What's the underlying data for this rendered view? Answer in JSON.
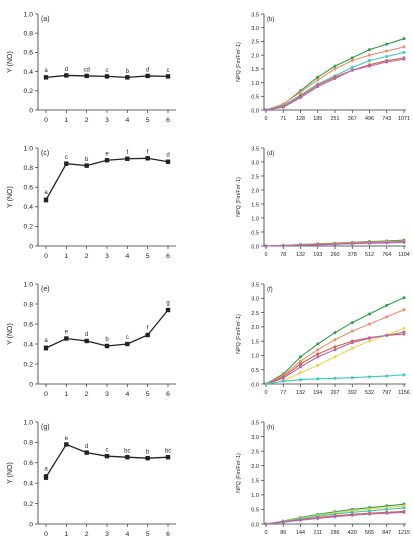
{
  "chart_data": [
    {
      "id": "a",
      "type": "line",
      "panel_label": "(a)",
      "ylabel": "Y (NO)",
      "categories": [
        "0",
        "1",
        "2",
        "3",
        "4",
        "5",
        "6"
      ],
      "ylim": [
        0,
        1.0
      ],
      "yticks": [
        "0",
        "0.2",
        "0.4",
        "0.6",
        "0.8",
        "1.0"
      ],
      "series": [
        {
          "color": "#222222",
          "marker": "square",
          "values": [
            0.34,
            0.36,
            0.355,
            0.35,
            0.34,
            0.355,
            0.35
          ],
          "errors": [
            0.012,
            0.006,
            0.006,
            0.006,
            0.006,
            0.006,
            0.006
          ],
          "letters": [
            "a",
            "d",
            "cd",
            "c",
            "b",
            "d",
            "c"
          ]
        }
      ]
    },
    {
      "id": "b",
      "type": "line",
      "panel_label": "(b)",
      "ylabel": "NPQ (Fm/Fm'-1)",
      "categories": [
        "0",
        "71",
        "128",
        "185",
        "251",
        "367",
        "496",
        "743",
        "1071"
      ],
      "ylim": [
        0,
        3.5
      ],
      "yticks": [
        "0.0",
        "0.5",
        "1.0",
        "1.5",
        "2.0",
        "2.5",
        "3.0",
        "3.5"
      ],
      "series": [
        {
          "color": "#2e9e48",
          "values": [
            0.0,
            0.2,
            0.7,
            1.2,
            1.6,
            1.9,
            2.2,
            2.4,
            2.6
          ]
        },
        {
          "color": "#f08c6a",
          "values": [
            0.0,
            0.22,
            0.65,
            1.1,
            1.5,
            1.8,
            2.0,
            2.15,
            2.3
          ]
        },
        {
          "color": "#3cc7c0",
          "values": [
            0.0,
            0.15,
            0.55,
            0.95,
            1.25,
            1.55,
            1.8,
            1.95,
            2.1
          ]
        },
        {
          "color": "#e05a40",
          "values": [
            0.0,
            0.12,
            0.5,
            0.9,
            1.2,
            1.45,
            1.65,
            1.8,
            1.9
          ]
        },
        {
          "color": "#b06ab5",
          "values": [
            0.0,
            0.1,
            0.45,
            0.85,
            1.15,
            1.45,
            1.6,
            1.75,
            1.85
          ]
        }
      ]
    },
    {
      "id": "c",
      "type": "line",
      "panel_label": "(c)",
      "ylabel": "Y (NO)",
      "categories": [
        "0",
        "1",
        "2",
        "3",
        "4",
        "5",
        "6"
      ],
      "ylim": [
        0,
        1.0
      ],
      "yticks": [
        "0",
        "0.2",
        "0.4",
        "0.6",
        "0.8",
        "1.0"
      ],
      "series": [
        {
          "color": "#222222",
          "marker": "square",
          "values": [
            0.47,
            0.84,
            0.82,
            0.875,
            0.89,
            0.895,
            0.86
          ],
          "errors": [
            0.02,
            0.006,
            0.006,
            0.006,
            0.006,
            0.006,
            0.012
          ],
          "letters": [
            "a",
            "c",
            "b",
            "e",
            "f",
            "f",
            "d"
          ]
        }
      ]
    },
    {
      "id": "d",
      "type": "line",
      "panel_label": "(d)",
      "ylabel": "NPQ (Fm/Fm'-1)",
      "categories": [
        "0",
        "78",
        "132",
        "193",
        "260",
        "378",
        "512",
        "764",
        "1104"
      ],
      "ylim": [
        0,
        3.5
      ],
      "yticks": [
        "0.0",
        "0.5",
        "1.0",
        "1.5",
        "2.0",
        "2.5",
        "3.0",
        "3.5"
      ],
      "series": [
        {
          "color": "#2e9e48",
          "values": [
            0.0,
            0.02,
            0.05,
            0.08,
            0.1,
            0.13,
            0.16,
            0.18,
            0.21
          ]
        },
        {
          "color": "#f08c6a",
          "values": [
            0.0,
            0.02,
            0.04,
            0.07,
            0.09,
            0.12,
            0.14,
            0.16,
            0.18
          ]
        },
        {
          "color": "#3cc7c0",
          "values": [
            0.0,
            0.01,
            0.03,
            0.05,
            0.07,
            0.09,
            0.11,
            0.13,
            0.15
          ]
        },
        {
          "color": "#e05a40",
          "values": [
            0.0,
            0.01,
            0.03,
            0.05,
            0.07,
            0.09,
            0.11,
            0.12,
            0.14
          ]
        },
        {
          "color": "#b06ab5",
          "values": [
            0.0,
            0.01,
            0.02,
            0.04,
            0.06,
            0.08,
            0.1,
            0.11,
            0.13
          ]
        }
      ]
    },
    {
      "id": "e",
      "type": "line",
      "panel_label": "(e)",
      "ylabel": "Y (NO)",
      "categories": [
        "0",
        "1",
        "2",
        "3",
        "4",
        "5",
        "6"
      ],
      "ylim": [
        0,
        1.0
      ],
      "yticks": [
        "0",
        "0.2",
        "0.4",
        "0.6",
        "0.8",
        "1.0"
      ],
      "series": [
        {
          "color": "#222222",
          "marker": "square",
          "values": [
            0.36,
            0.455,
            0.43,
            0.38,
            0.4,
            0.49,
            0.74
          ],
          "errors": [
            0.02,
            0.01,
            0.01,
            0.01,
            0.01,
            0.015,
            0.015
          ],
          "letters": [
            "a",
            "e",
            "d",
            "b",
            "c",
            "f",
            "g"
          ]
        }
      ]
    },
    {
      "id": "f",
      "type": "line",
      "panel_label": "(f)",
      "ylabel": "NPQ (Fm/Fm'-1)",
      "categories": [
        "0",
        "77",
        "132",
        "194",
        "267",
        "392",
        "532",
        "797",
        "1156"
      ],
      "ylim": [
        0,
        3.5
      ],
      "yticks": [
        "0.0",
        "0.5",
        "1.0",
        "1.5",
        "2.0",
        "2.5",
        "3.0",
        "3.5"
      ],
      "series": [
        {
          "color": "#2e9e48",
          "values": [
            0.0,
            0.35,
            0.95,
            1.4,
            1.8,
            2.15,
            2.45,
            2.75,
            3.02
          ]
        },
        {
          "color": "#f08c6a",
          "values": [
            0.0,
            0.3,
            0.8,
            1.2,
            1.55,
            1.85,
            2.1,
            2.35,
            2.6
          ]
        },
        {
          "color": "#e8d84a",
          "values": [
            0.0,
            0.1,
            0.4,
            0.65,
            0.95,
            1.25,
            1.5,
            1.72,
            1.95
          ]
        },
        {
          "color": "#e05a40",
          "values": [
            0.0,
            0.25,
            0.7,
            1.05,
            1.3,
            1.5,
            1.62,
            1.7,
            1.75
          ]
        },
        {
          "color": "#b06ab5",
          "values": [
            0.0,
            0.2,
            0.6,
            0.95,
            1.2,
            1.45,
            1.6,
            1.7,
            1.82
          ]
        },
        {
          "color": "#3cc7c0",
          "values": [
            0.0,
            0.1,
            0.15,
            0.18,
            0.2,
            0.22,
            0.25,
            0.28,
            0.32
          ]
        }
      ]
    },
    {
      "id": "g",
      "type": "line",
      "panel_label": "(g)",
      "ylabel": "Y (NO)",
      "categories": [
        "0",
        "1",
        "2",
        "3",
        "4",
        "5",
        "6"
      ],
      "ylim": [
        0,
        1.0
      ],
      "yticks": [
        "0",
        "0.2",
        "0.4",
        "0.6",
        "0.8",
        "1.0"
      ],
      "series": [
        {
          "color": "#222222",
          "marker": "square",
          "values": [
            0.46,
            0.78,
            0.7,
            0.665,
            0.655,
            0.645,
            0.655
          ],
          "errors": [
            0.025,
            0.006,
            0.006,
            0.006,
            0.006,
            0.006,
            0.006
          ],
          "letters": [
            "a",
            "e",
            "d",
            "c",
            "bc",
            "b",
            "bc"
          ]
        }
      ]
    },
    {
      "id": "h",
      "type": "line",
      "panel_label": "(h)",
      "ylabel": "NPQ (Fm/Fm'-1)",
      "categories": [
        "0",
        "86",
        "144",
        "211",
        "286",
        "420",
        "565",
        "847",
        "1215"
      ],
      "ylim": [
        0,
        3.5
      ],
      "yticks": [
        "0.0",
        "0.5",
        "1.0",
        "1.5",
        "2.0",
        "2.5",
        "3.0",
        "3.5"
      ],
      "series": [
        {
          "color": "#2e9e48",
          "values": [
            0.0,
            0.1,
            0.22,
            0.33,
            0.42,
            0.5,
            0.56,
            0.62,
            0.68
          ]
        },
        {
          "color": "#e8d84a",
          "values": [
            0.0,
            0.09,
            0.2,
            0.3,
            0.38,
            0.45,
            0.51,
            0.56,
            0.62
          ]
        },
        {
          "color": "#3cc7c0",
          "values": [
            0.0,
            0.08,
            0.18,
            0.27,
            0.34,
            0.4,
            0.45,
            0.5,
            0.55
          ]
        },
        {
          "color": "#e05a40",
          "values": [
            0.0,
            0.07,
            0.15,
            0.22,
            0.28,
            0.33,
            0.37,
            0.4,
            0.43
          ]
        },
        {
          "color": "#b06ab5",
          "values": [
            0.0,
            0.06,
            0.13,
            0.19,
            0.25,
            0.3,
            0.34,
            0.37,
            0.4
          ]
        }
      ]
    }
  ]
}
